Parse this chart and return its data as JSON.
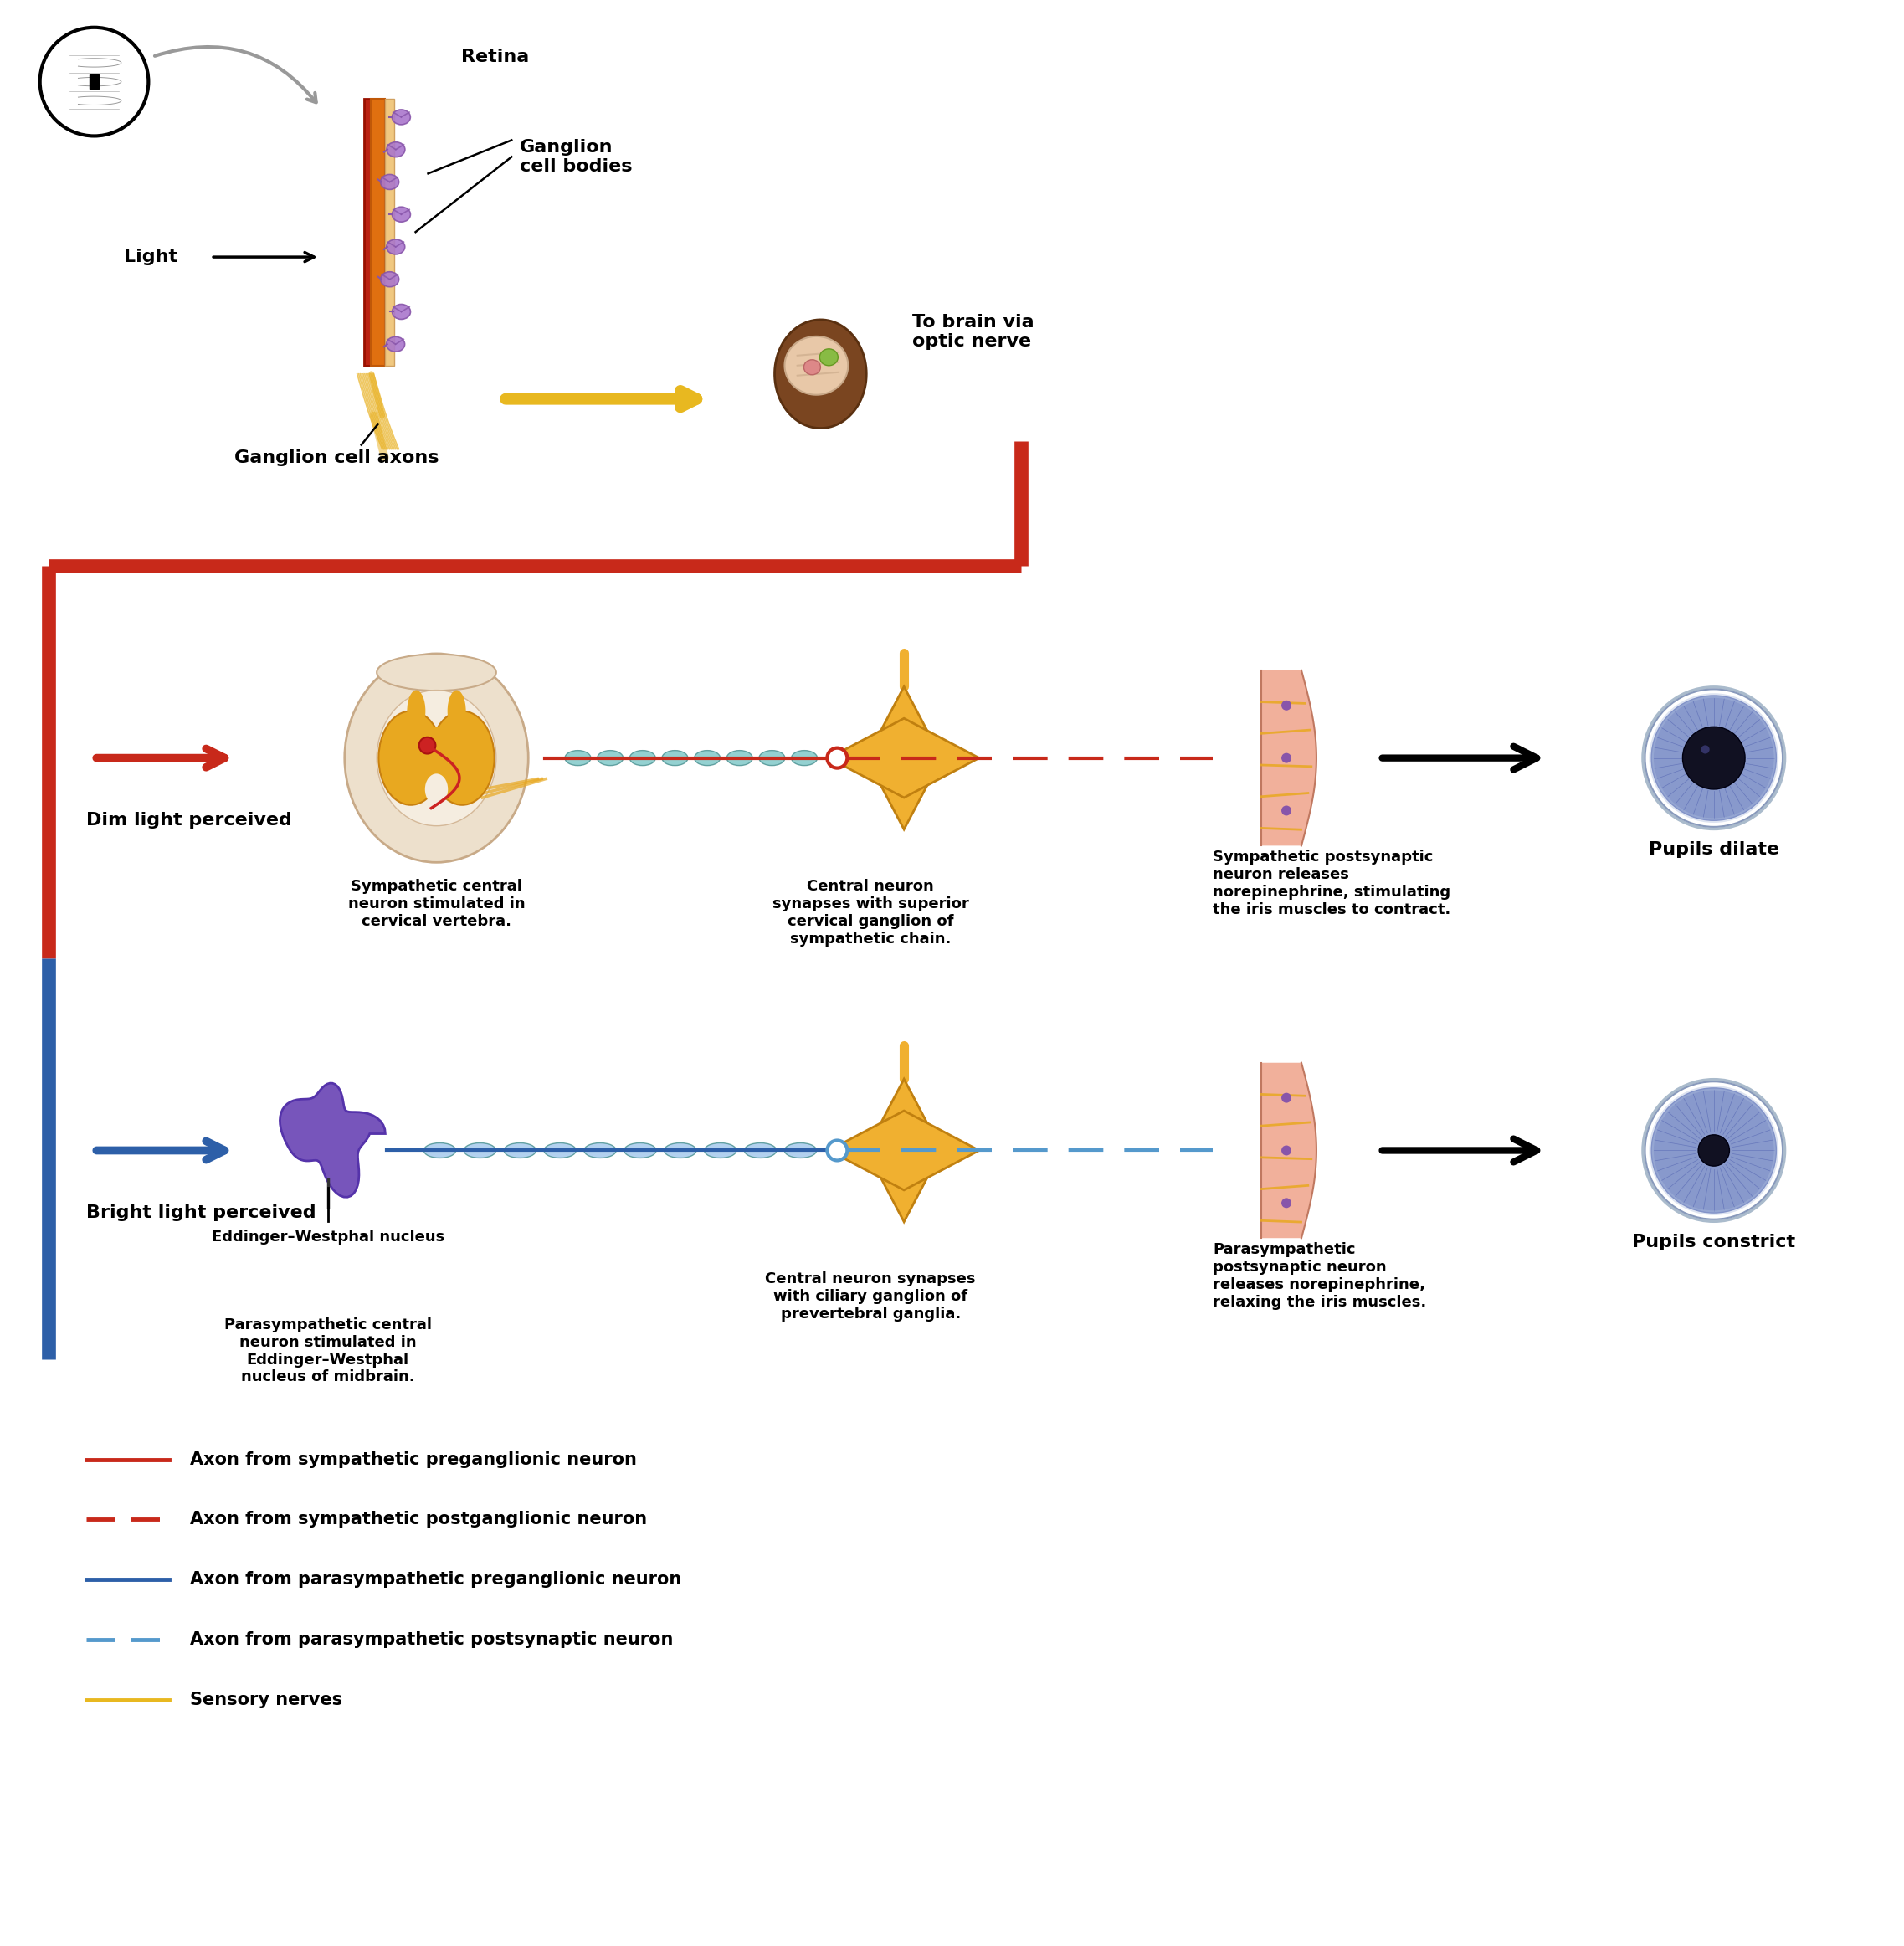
{
  "bg_color": "#ffffff",
  "red_border_color": "#c8291a",
  "blue_border_color": "#2d5fa8",
  "label_fontsize": 15,
  "small_fontsize": 13,
  "legend_items": [
    {
      "color": "#c8291a",
      "linestyle": "solid",
      "label": "Axon from sympathetic preganglionic neuron"
    },
    {
      "color": "#c8291a",
      "linestyle": "dashed",
      "label": "Axon from sympathetic postganglionic neuron"
    },
    {
      "color": "#2d5fa8",
      "linestyle": "solid",
      "label": "Axon from parasympathetic preganglionic neuron"
    },
    {
      "color": "#5599cc",
      "linestyle": "dashed",
      "label": "Axon from parasympathetic postsynaptic neuron"
    },
    {
      "color": "#e8b820",
      "linestyle": "solid",
      "label": "Sensory nerves"
    }
  ],
  "section1_labels": {
    "retina": "Retina",
    "ganglion_bodies": "Ganglion\ncell bodies",
    "light": "Light",
    "ganglion_axons": "Ganglion cell axons",
    "to_brain": "To brain via\noptic nerve"
  },
  "dim_light_labels": {
    "side_label": "Dim light perceived",
    "spinal": "Sympathetic central\nneuron stimulated in\ncervical vertebra.",
    "synapse": "Central neuron\nsynapses with superior\ncervical ganglion of\nsympathetic chain.",
    "release": "Sympathetic postsynaptic\nneuron releases\nnorepinephrine, stimulating\nthe iris muscles to contract.",
    "pupil": "Pupils dilate"
  },
  "bright_light_labels": {
    "side_label": "Bright light perceived",
    "nucleus_label": "Eddinger–Westphal nucleus",
    "parasym": "Parasympathetic central\nneuron stimulated in\nEddinger–Westphal\nnucleus of midbrain.",
    "synapse": "Central neuron synapses\nwith ciliary ganglion of\nprevertebral ganglia.",
    "release": "Parasympathetic\npostsynaptic neuron\nreleases norepinephrine,\nrelaxing the iris muscles.",
    "pupil": "Pupils constrict"
  }
}
